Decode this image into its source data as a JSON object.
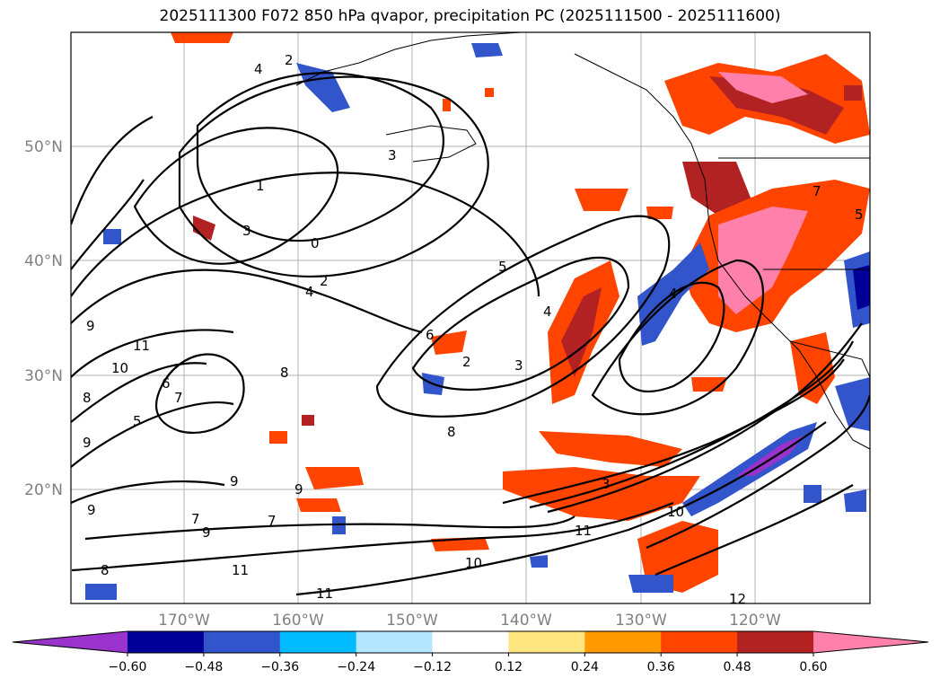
{
  "title": "2025111300 F072 850 hPa qvapor, precipitation PC (2025111500 - 2025111600)",
  "map": {
    "lat_labels": [
      "50°N",
      "40°N",
      "30°N",
      "20°N"
    ],
    "lon_labels": [
      "170°W",
      "160°W",
      "150°W",
      "140°W",
      "130°W",
      "120°W"
    ],
    "contour_labels": [
      "4",
      "2",
      "3",
      "1",
      "3",
      "0",
      "2",
      "4",
      "5",
      "4",
      "6",
      "2",
      "3",
      "8",
      "9",
      "11",
      "10",
      "8",
      "6",
      "7",
      "5",
      "8",
      "9",
      "9",
      "9",
      "9",
      "7",
      "9",
      "7",
      "11",
      "11",
      "8",
      "3",
      "11",
      "10",
      "10",
      "12",
      "4",
      "7",
      "5"
    ]
  },
  "colorbar": {
    "colors": [
      "#9933cc",
      "#000099",
      "#3355cc",
      "#00bbff",
      "#b3e6ff",
      "#ffffff",
      "#ffe680",
      "#ff9900",
      "#ff4400",
      "#b22222",
      "#ff80aa"
    ],
    "ticks": [
      "−0.60",
      "−0.48",
      "−0.36",
      "−0.24",
      "−0.12",
      "0.12",
      "0.24",
      "0.36",
      "0.48",
      "0.60"
    ]
  }
}
